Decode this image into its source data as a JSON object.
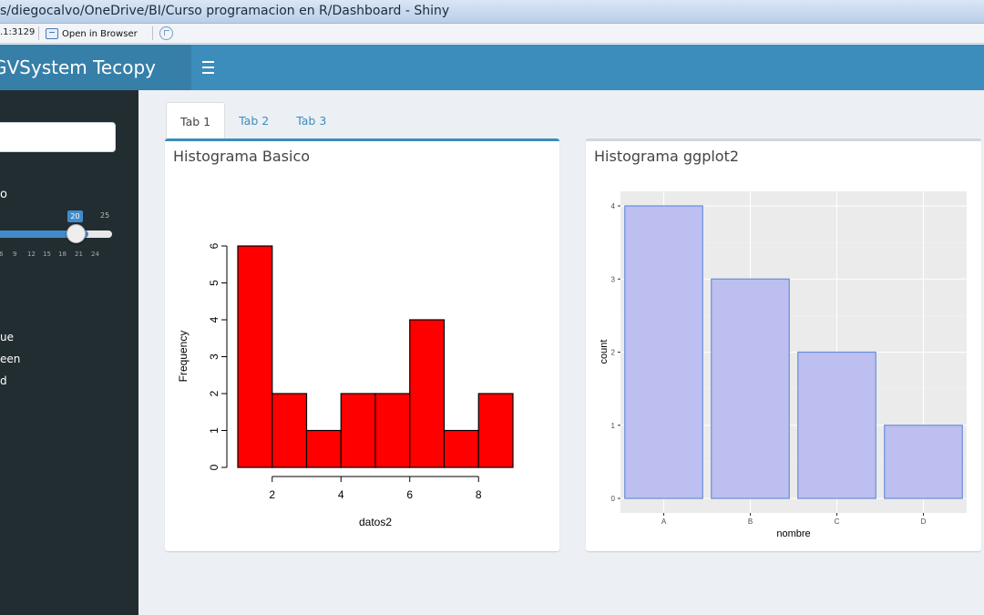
{
  "window": {
    "title": "s/diegocalvo/OneDrive/BI/Curso programacion en R/Dashboard - Shiny",
    "address": ".1:3129",
    "open_in_browser": "Open in Browser"
  },
  "header": {
    "brand": "GVSystem Tecopy"
  },
  "sidebar": {
    "slider": {
      "label": "o",
      "value": "20",
      "max_label": "25",
      "fill_fraction": 0.8,
      "tick_labels": [
        "6",
        "9",
        "12",
        "15",
        "18",
        "21",
        "24"
      ]
    },
    "radio_items": [
      "ue",
      "een",
      "d"
    ]
  },
  "tabs": [
    "Tab 1",
    "Tab 2",
    "Tab 3"
  ],
  "colors": {
    "header": "#3c8dbc",
    "sidebar": "#222d32",
    "hist_fill": "#ff0000",
    "bar_fill": "#bcbfef",
    "bar_stroke": "#6a8fdc",
    "ggplot_panel": "#ebebeb"
  },
  "chart_data": [
    {
      "type": "bar",
      "title": "Histograma Basico",
      "xlabel": "datos2",
      "ylabel": "Frequency",
      "bin_edges": [
        1,
        2,
        3,
        4,
        5,
        6,
        7,
        8,
        9
      ],
      "values": [
        6,
        2,
        1,
        2,
        2,
        4,
        1,
        2
      ],
      "x_ticks": [
        "2",
        "4",
        "6",
        "8"
      ],
      "y_ticks": [
        "0",
        "1",
        "2",
        "3",
        "4",
        "5",
        "6"
      ],
      "ylim": [
        0,
        6
      ],
      "xlim": [
        1,
        9
      ],
      "grid": false
    },
    {
      "type": "bar",
      "title": "Histograma ggplot2",
      "xlabel": "nombre",
      "ylabel": "count",
      "categories": [
        "A",
        "B",
        "C",
        "D"
      ],
      "values": [
        4,
        3,
        2,
        1
      ],
      "y_ticks": [
        "0",
        "1",
        "2",
        "3",
        "4"
      ],
      "ylim": [
        0,
        4
      ],
      "grid": true
    }
  ]
}
